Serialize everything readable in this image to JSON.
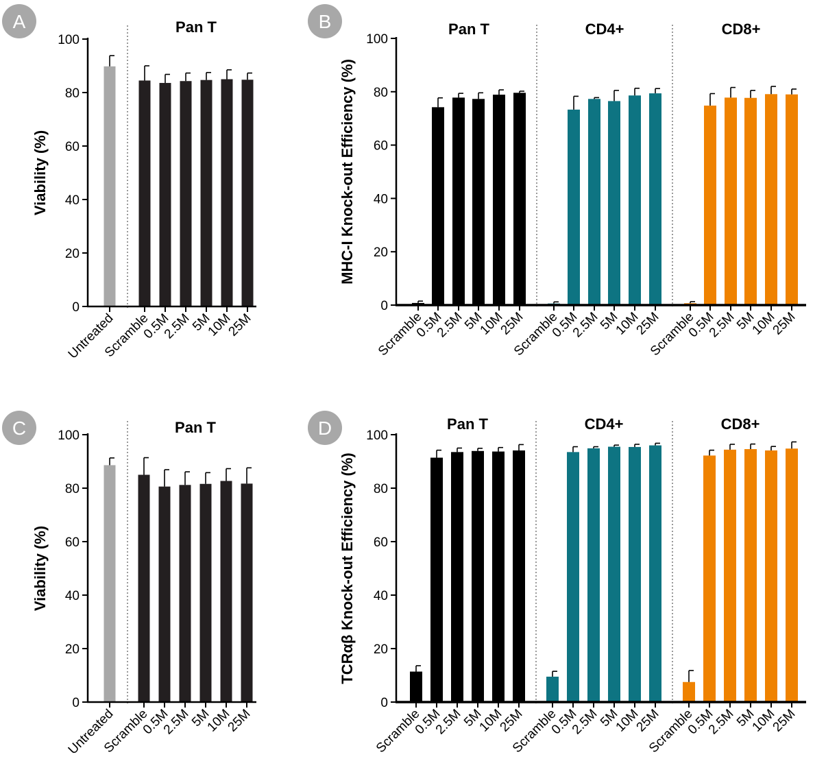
{
  "chart_data": [
    {
      "panel": "A",
      "type": "bar",
      "ylabel": "Viability (%)",
      "ylim": [
        0,
        100
      ],
      "yticks": [
        0,
        20,
        40,
        60,
        80,
        100
      ],
      "groups": [
        {
          "title": "",
          "color": "#a8a8a8",
          "categories": [
            "Untreated"
          ],
          "values": [
            89.8
          ],
          "errors": [
            4
          ]
        },
        {
          "title": "Pan T",
          "color": "#231f20",
          "categories": [
            "Scramble",
            "0.5M",
            "2.5M",
            "5M",
            "10M",
            "25M"
          ],
          "values": [
            84.5,
            83.6,
            84.3,
            84.7,
            85.0,
            84.8
          ],
          "errors": [
            5.5,
            3.2,
            3.0,
            2.8,
            3.5,
            2.5
          ]
        }
      ]
    },
    {
      "panel": "B",
      "type": "bar",
      "ylabel": "MHC-I Knock-out Efficiency  (%)",
      "ylim": [
        0,
        100
      ],
      "yticks": [
        0,
        20,
        40,
        60,
        80,
        100
      ],
      "groups": [
        {
          "title": "Pan T",
          "color": "#000000",
          "categories": [
            "Scramble",
            "0.5M",
            "2.5M",
            "5M",
            "10M",
            "25M"
          ],
          "values": [
            0.8,
            74.2,
            77.8,
            77.3,
            78.9,
            79.6
          ],
          "errors": [
            0.7,
            3.5,
            1.6,
            2.3,
            1.8,
            0.6
          ]
        },
        {
          "title": "CD4+",
          "color": "#0e7482",
          "categories": [
            "Scramble",
            "0.5M",
            "2.5M",
            "5M",
            "10M",
            "25M"
          ],
          "values": [
            0.6,
            73.3,
            77.3,
            76.5,
            78.6,
            79.4
          ],
          "errors": [
            0.6,
            5.0,
            0.5,
            4.0,
            2.7,
            1.8
          ]
        },
        {
          "title": "CD8+",
          "color": "#ef8200",
          "categories": [
            "Scramble",
            "0.5M",
            "2.5M",
            "5M",
            "10M",
            "25M"
          ],
          "values": [
            0.7,
            74.8,
            77.8,
            77.7,
            79.1,
            79.0
          ],
          "errors": [
            0.6,
            4.5,
            3.8,
            2.8,
            2.9,
            2.0
          ]
        }
      ]
    },
    {
      "panel": "C",
      "type": "bar",
      "ylabel": "Viability (%)",
      "ylim": [
        0,
        100
      ],
      "yticks": [
        0,
        20,
        40,
        60,
        80,
        100
      ],
      "groups": [
        {
          "title": "",
          "color": "#a8a8a8",
          "categories": [
            "Untreated"
          ],
          "values": [
            88.6
          ],
          "errors": [
            2.7
          ]
        },
        {
          "title": "Pan T",
          "color": "#231f20",
          "categories": [
            "Scramble",
            "0.5M",
            "2.5M",
            "5M",
            "10M",
            "25M"
          ],
          "values": [
            85.0,
            80.6,
            81.2,
            81.6,
            82.7,
            81.7
          ],
          "errors": [
            6.4,
            6.3,
            4.9,
            4.2,
            4.6,
            5.9
          ]
        }
      ]
    },
    {
      "panel": "D",
      "type": "bar",
      "ylabel": "TCRαβ Knock-out Efficiency (%)",
      "ylim": [
        0,
        100
      ],
      "yticks": [
        0,
        20,
        40,
        60,
        80,
        100
      ],
      "groups": [
        {
          "title": "Pan T",
          "color": "#000000",
          "categories": [
            "Scramble",
            "0.5M",
            "2.5M",
            "5M",
            "10M",
            "25M"
          ],
          "values": [
            11.4,
            91.4,
            93.5,
            93.9,
            93.7,
            94.1
          ],
          "errors": [
            2.2,
            2.8,
            1.5,
            1.0,
            1.5,
            2.2
          ]
        },
        {
          "title": "CD4+",
          "color": "#0e7482",
          "categories": [
            "Scramble",
            "0.5M",
            "2.5M",
            "5M",
            "10M",
            "25M"
          ],
          "values": [
            9.5,
            93.5,
            94.9,
            95.5,
            95.4,
            96.0
          ],
          "errors": [
            2.0,
            2.0,
            0.6,
            0.6,
            1.0,
            0.8
          ]
        },
        {
          "title": "CD8+",
          "color": "#ef8200",
          "categories": [
            "Scramble",
            "0.5M",
            "2.5M",
            "5M",
            "10M",
            "25M"
          ],
          "values": [
            7.5,
            92.2,
            94.4,
            94.6,
            94.1,
            94.8
          ],
          "errors": [
            4.3,
            2.0,
            2.0,
            1.9,
            1.5,
            2.5
          ]
        }
      ]
    }
  ]
}
